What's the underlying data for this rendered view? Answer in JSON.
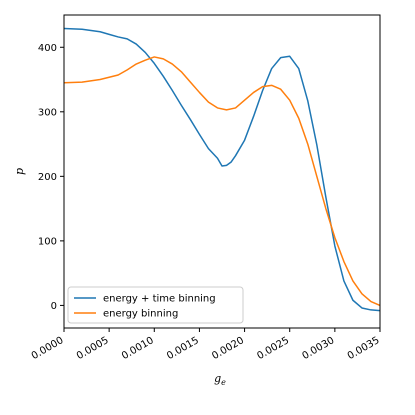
{
  "chart_data": {
    "type": "line",
    "title": "",
    "xlabel": "g_e",
    "ylabel": "p",
    "xlim": [
      0.0,
      0.0035
    ],
    "ylim": [
      -35,
      450
    ],
    "x_ticks": [
      "0.0000",
      "0.0005",
      "0.0010",
      "0.0015",
      "0.0020",
      "0.0025",
      "0.0030",
      "0.0035"
    ],
    "y_ticks": [
      "0",
      "100",
      "200",
      "300",
      "400"
    ],
    "grid": false,
    "legend_position": "lower-left",
    "series": [
      {
        "name": "energy + time binning",
        "color": "#1f77b4",
        "points": [
          [
            0.0,
            429
          ],
          [
            0.0002,
            428
          ],
          [
            0.0004,
            424
          ],
          [
            0.0005,
            420
          ],
          [
            0.0006,
            416
          ],
          [
            0.0007,
            413
          ],
          [
            0.0008,
            405
          ],
          [
            0.0009,
            392
          ],
          [
            0.001,
            375
          ],
          [
            0.0011,
            355
          ],
          [
            0.0012,
            333
          ],
          [
            0.0013,
            310
          ],
          [
            0.0014,
            288
          ],
          [
            0.0015,
            265
          ],
          [
            0.0016,
            243
          ],
          [
            0.0017,
            228
          ],
          [
            0.00175,
            216
          ],
          [
            0.0018,
            217
          ],
          [
            0.00185,
            222
          ],
          [
            0.0019,
            232
          ],
          [
            0.002,
            256
          ],
          [
            0.0021,
            293
          ],
          [
            0.0022,
            333
          ],
          [
            0.0023,
            367
          ],
          [
            0.0024,
            384
          ],
          [
            0.0025,
            386
          ],
          [
            0.0026,
            367
          ],
          [
            0.0027,
            317
          ],
          [
            0.0028,
            249
          ],
          [
            0.0029,
            168
          ],
          [
            0.003,
            92
          ],
          [
            0.0031,
            38
          ],
          [
            0.0032,
            8
          ],
          [
            0.0033,
            -4
          ],
          [
            0.0034,
            -7
          ],
          [
            0.0035,
            -8
          ]
        ]
      },
      {
        "name": "energy binning",
        "color": "#ff7f0e",
        "points": [
          [
            0.0,
            345
          ],
          [
            0.0002,
            346
          ],
          [
            0.0004,
            350
          ],
          [
            0.0006,
            357
          ],
          [
            0.0007,
            365
          ],
          [
            0.0008,
            374
          ],
          [
            0.0009,
            380
          ],
          [
            0.001,
            385
          ],
          [
            0.0011,
            382
          ],
          [
            0.0012,
            374
          ],
          [
            0.0013,
            362
          ],
          [
            0.0014,
            346
          ],
          [
            0.0015,
            330
          ],
          [
            0.0016,
            315
          ],
          [
            0.0017,
            306
          ],
          [
            0.0018,
            303
          ],
          [
            0.0019,
            306
          ],
          [
            0.002,
            318
          ],
          [
            0.0021,
            330
          ],
          [
            0.0022,
            339
          ],
          [
            0.0023,
            341
          ],
          [
            0.0024,
            335
          ],
          [
            0.0025,
            318
          ],
          [
            0.0026,
            290
          ],
          [
            0.0027,
            250
          ],
          [
            0.0028,
            200
          ],
          [
            0.0029,
            150
          ],
          [
            0.003,
            105
          ],
          [
            0.0031,
            68
          ],
          [
            0.0032,
            38
          ],
          [
            0.0033,
            18
          ],
          [
            0.0034,
            6
          ],
          [
            0.0035,
            0
          ]
        ]
      }
    ]
  }
}
